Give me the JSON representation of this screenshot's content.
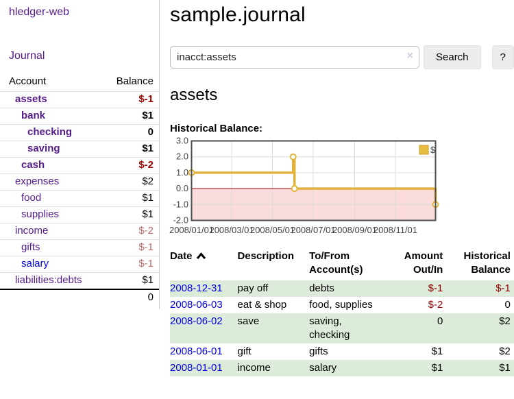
{
  "app": {
    "title": "hledger-web"
  },
  "sidebar": {
    "journal_link": "Journal",
    "accounts": {
      "header_account": "Account",
      "header_balance": "Balance",
      "rows": [
        {
          "name": "assets",
          "balance": "$-1"
        },
        {
          "name": "bank",
          "balance": "$1"
        },
        {
          "name": "checking",
          "balance": "0"
        },
        {
          "name": "saving",
          "balance": "$1"
        },
        {
          "name": "cash",
          "balance": "$-2"
        },
        {
          "name": "expenses",
          "balance": "$2"
        },
        {
          "name": "food",
          "balance": "$1"
        },
        {
          "name": "supplies",
          "balance": "$1"
        },
        {
          "name": "income",
          "balance": "$-2"
        },
        {
          "name": "gifts",
          "balance": "$-1"
        },
        {
          "name": "salary",
          "balance": "$-1"
        },
        {
          "name": "liabilities:debts",
          "balance": "$1"
        }
      ],
      "total": "0"
    }
  },
  "main": {
    "title": "sample.journal",
    "search": {
      "value": "inacct:assets",
      "clear_icon": "×",
      "button": "Search",
      "help_button": "?"
    },
    "heading": "assets",
    "chart_title": "Historical Balance:"
  },
  "register": {
    "headers": {
      "date": "Date",
      "description": "Description",
      "accounts": "To/From Account(s)",
      "amount": "Amount Out/In",
      "balance": "Historical Balance"
    },
    "rows": [
      {
        "date": "2008-12-31",
        "description": "pay off",
        "accounts": "debts",
        "amount": "$-1",
        "balance": "$-1"
      },
      {
        "date": "2008-06-03",
        "description": "eat & shop",
        "accounts": "food, supplies",
        "amount": "$-2",
        "balance": "0"
      },
      {
        "date": "2008-06-02",
        "description": "save",
        "accounts": "saving, checking",
        "amount": "0",
        "balance": "$2"
      },
      {
        "date": "2008-06-01",
        "description": "gift",
        "accounts": "gifts",
        "amount": "$1",
        "balance": "$2"
      },
      {
        "date": "2008-01-01",
        "description": "income",
        "accounts": "salary",
        "amount": "$1",
        "balance": "$1"
      }
    ]
  },
  "chart_data": {
    "type": "line",
    "step": true,
    "title": "Historical Balance:",
    "series": [
      {
        "name": "$",
        "points": [
          [
            "2008-01-01",
            1
          ],
          [
            "2008-06-01",
            2
          ],
          [
            "2008-06-03",
            0
          ],
          [
            "2008-12-31",
            -1
          ]
        ]
      }
    ],
    "x_tick_labels": [
      "2008/01/01",
      "2008/03/01",
      "2008/05/01",
      "2008/07/01",
      "2008/09/01",
      "2008/11/01"
    ],
    "y_ticks": [
      3.0,
      2.0,
      1.0,
      0.0,
      -1.0,
      -2.0
    ],
    "xlim": [
      "2008-01-01",
      "2008-12-31"
    ],
    "ylim": [
      -2,
      3
    ],
    "legend_position": "top-right",
    "grid": true,
    "colors": {
      "line": "#e2b33c",
      "legend_fill": "#e8bc3f",
      "negative_fill": "#fbdcdc",
      "zero_line": "#8b0000"
    }
  }
}
